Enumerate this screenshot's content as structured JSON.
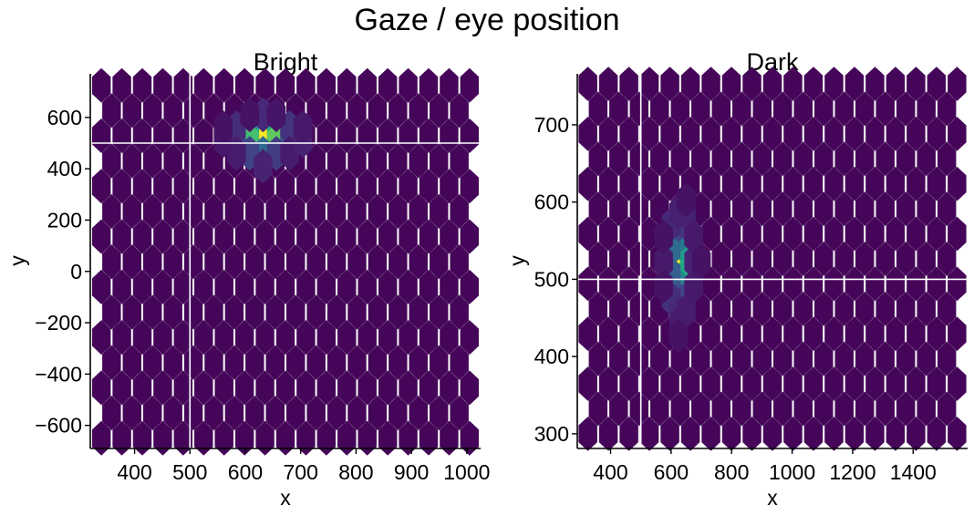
{
  "figure": {
    "suptitle": "Gaze / eye position"
  },
  "chart_data": [
    {
      "type": "heatmap",
      "subtype": "hexbin",
      "title": "Bright",
      "xlabel": "x",
      "ylabel": "y",
      "xlim": [
        320,
        1025
      ],
      "ylim": [
        -690,
        770
      ],
      "xticks": [
        400,
        500,
        600,
        700,
        800,
        900,
        1000
      ],
      "xtick_labels": [
        "400",
        "500",
        "600",
        "700",
        "800",
        "900",
        "1000"
      ],
      "yticks": [
        600,
        400,
        200,
        0,
        -200,
        -400,
        -600
      ],
      "ytick_labels": [
        "600",
        "400",
        "200",
        "0",
        "−200",
        "−400",
        "−600"
      ],
      "hex_extent": {
        "x": [
          340,
          1005
        ],
        "y": [
          -650,
          725
        ]
      },
      "ref_lines": {
        "x": 500,
        "y": 500
      },
      "colormap": "viridis",
      "bins": [
        {
          "x": 632,
          "y": 510,
          "level": 1.0
        },
        {
          "x": 608,
          "y": 560,
          "level": 0.55
        },
        {
          "x": 656,
          "y": 560,
          "level": 0.6
        },
        {
          "x": 608,
          "y": 510,
          "level": 0.7
        },
        {
          "x": 656,
          "y": 510,
          "level": 0.75
        },
        {
          "x": 632,
          "y": 460,
          "level": 0.35
        },
        {
          "x": 584,
          "y": 510,
          "level": 0.2
        },
        {
          "x": 680,
          "y": 510,
          "level": 0.25
        },
        {
          "x": 632,
          "y": 610,
          "level": 0.12
        },
        {
          "x": 584,
          "y": 560,
          "level": 0.13
        },
        {
          "x": 680,
          "y": 560,
          "level": 0.15
        },
        {
          "x": 608,
          "y": 460,
          "level": 0.2
        },
        {
          "x": 656,
          "y": 460,
          "level": 0.18
        },
        {
          "x": 584,
          "y": 460,
          "level": 0.08
        },
        {
          "x": 680,
          "y": 460,
          "level": 0.08
        },
        {
          "x": 632,
          "y": 410,
          "level": 0.1
        },
        {
          "x": 560,
          "y": 510,
          "level": 0.07
        },
        {
          "x": 704,
          "y": 510,
          "level": 0.1
        },
        {
          "x": 704,
          "y": 560,
          "level": 0.07
        },
        {
          "x": 560,
          "y": 560,
          "level": 0.05
        },
        {
          "x": 608,
          "y": 610,
          "level": 0.05
        },
        {
          "x": 656,
          "y": 610,
          "level": 0.06
        }
      ]
    },
    {
      "type": "heatmap",
      "subtype": "hexbin",
      "title": "Dark",
      "xlabel": "x",
      "ylabel": "y",
      "xlim": [
        290,
        1580
      ],
      "ylim": [
        281,
        766
      ],
      "xticks": [
        400,
        600,
        800,
        1000,
        1200,
        1400
      ],
      "xtick_labels": [
        "400",
        "600",
        "800",
        "1000",
        "1200",
        "1400"
      ],
      "yticks": [
        700,
        600,
        500,
        400,
        300
      ],
      "ytick_labels": [
        "700",
        "600",
        "500",
        "400",
        "300"
      ],
      "hex_extent": {
        "x": [
          325,
          1545
        ],
        "y": [
          300,
          753
        ]
      },
      "ref_lines": {
        "x": 500,
        "y": 500
      },
      "colormap": "viridis",
      "bins": [
        {
          "x": 625,
          "y": 523,
          "level": 1.0
        },
        {
          "x": 650,
          "y": 539,
          "level": 0.55
        },
        {
          "x": 650,
          "y": 507,
          "level": 0.6
        },
        {
          "x": 625,
          "y": 555,
          "level": 0.4
        },
        {
          "x": 625,
          "y": 491,
          "level": 0.45
        },
        {
          "x": 600,
          "y": 539,
          "level": 0.35
        },
        {
          "x": 600,
          "y": 507,
          "level": 0.3
        },
        {
          "x": 625,
          "y": 571,
          "level": 0.2
        },
        {
          "x": 625,
          "y": 475,
          "level": 0.25
        },
        {
          "x": 650,
          "y": 571,
          "level": 0.15
        },
        {
          "x": 650,
          "y": 475,
          "level": 0.2
        },
        {
          "x": 600,
          "y": 571,
          "level": 0.12
        },
        {
          "x": 600,
          "y": 475,
          "level": 0.14
        },
        {
          "x": 650,
          "y": 587,
          "level": 0.1
        },
        {
          "x": 625,
          "y": 459,
          "level": 0.12
        },
        {
          "x": 625,
          "y": 587,
          "level": 0.09
        },
        {
          "x": 625,
          "y": 443,
          "level": 0.08
        },
        {
          "x": 650,
          "y": 459,
          "level": 0.08
        },
        {
          "x": 675,
          "y": 523,
          "level": 0.1
        },
        {
          "x": 575,
          "y": 523,
          "level": 0.07
        },
        {
          "x": 675,
          "y": 555,
          "level": 0.07
        },
        {
          "x": 675,
          "y": 491,
          "level": 0.07
        },
        {
          "x": 575,
          "y": 491,
          "level": 0.05
        },
        {
          "x": 575,
          "y": 555,
          "level": 0.05
        },
        {
          "x": 650,
          "y": 603,
          "level": 0.05
        },
        {
          "x": 625,
          "y": 427,
          "level": 0.05
        },
        {
          "x": 700,
          "y": 523,
          "level": 0.05
        }
      ]
    }
  ]
}
